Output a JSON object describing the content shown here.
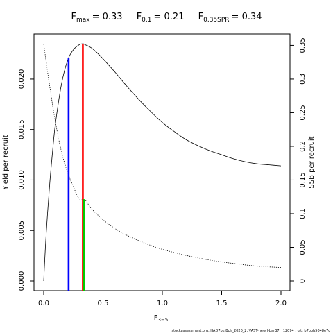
{
  "title": {
    "fmax_label": "F",
    "fmax_sub": "max",
    "fmax_value": "= 0.33",
    "f01_label": "F",
    "f01_sub": "0.1",
    "f01_value": "= 0.21",
    "f035_label": "F",
    "f035_sub": "0.35SPR",
    "f035_value": "= 0.34"
  },
  "footer": "stockassessment.org, HAD7bk-Bch_2020_2, VAST-new f-bar37, r12094 ; git: b7bbb5048e7c",
  "chart_data": {
    "type": "line",
    "xlabel": "F",
    "xlabel_sub": "3−5",
    "ylabel_left": "Yield per recruit",
    "ylabel_right": "SSB per recruit",
    "xlim": [
      0,
      2
    ],
    "ylim_left": [
      0,
      0.0235
    ],
    "ylim_right": [
      0,
      0.3525
    ],
    "x_ticks": [
      0,
      0.5,
      1,
      1.5,
      2
    ],
    "x_tick_labels": [
      "0.0",
      "0.5",
      "1.0",
      "1.5",
      "2.0"
    ],
    "y_left_ticks": [
      0,
      0.005,
      0.01,
      0.015,
      0.02
    ],
    "y_left_tick_labels": [
      "0.000",
      "0.005",
      "0.010",
      "0.015",
      "0.020"
    ],
    "y_right_ticks": [
      0,
      0.05,
      0.1,
      0.15,
      0.2,
      0.25,
      0.3,
      0.35
    ],
    "y_right_tick_labels": [
      "0",
      "0.05",
      "0.1",
      "0.15",
      "0.2",
      "0.25",
      "0.3",
      "0.35"
    ],
    "grid": false,
    "series": [
      {
        "style": "solid",
        "axis": "left",
        "color": "#000000",
        "x": [
          0,
          0.02,
          0.05,
          0.08,
          0.1,
          0.15,
          0.2,
          0.25,
          0.3,
          0.33,
          0.35,
          0.4,
          0.45,
          0.5,
          0.6,
          0.7,
          0.8,
          0.9,
          1.0,
          1.1,
          1.2,
          1.3,
          1.4,
          1.5,
          1.6,
          1.7,
          1.8,
          1.9,
          2.0
        ],
        "y": [
          0,
          0.0045,
          0.0095,
          0.0135,
          0.0157,
          0.0195,
          0.0218,
          0.0229,
          0.0234,
          0.0235,
          0.0234,
          0.0231,
          0.0226,
          0.022,
          0.0207,
          0.0193,
          0.018,
          0.0168,
          0.0157,
          0.0148,
          0.014,
          0.0134,
          0.0129,
          0.0125,
          0.0121,
          0.0118,
          0.0116,
          0.0115,
          0.0114
        ]
      },
      {
        "style": "dotted",
        "axis": "right",
        "color": "#000000",
        "x": [
          0,
          0.05,
          0.1,
          0.15,
          0.2,
          0.25,
          0.3,
          0.35,
          0.4,
          0.5,
          0.6,
          0.7,
          0.8,
          0.9,
          1.0,
          1.2,
          1.4,
          1.6,
          1.8,
          2.0
        ],
        "y": [
          0.352,
          0.29,
          0.235,
          0.192,
          0.162,
          0.14,
          0.122,
          0.12,
          0.108,
          0.091,
          0.078,
          0.068,
          0.06,
          0.053,
          0.047,
          0.038,
          0.031,
          0.026,
          0.022,
          0.02
        ]
      }
    ],
    "reference_lines": [
      {
        "name": "F0.1",
        "x": 0.21,
        "y_top": 0.0221,
        "color": "#0000ff"
      },
      {
        "name": "Fmax",
        "x": 0.33,
        "y_top": 0.0235,
        "color": "#ff0000"
      },
      {
        "name": "F0.35SPR",
        "x": 0.34,
        "y_top": 0.0081,
        "color": "#00cc00"
      }
    ]
  }
}
